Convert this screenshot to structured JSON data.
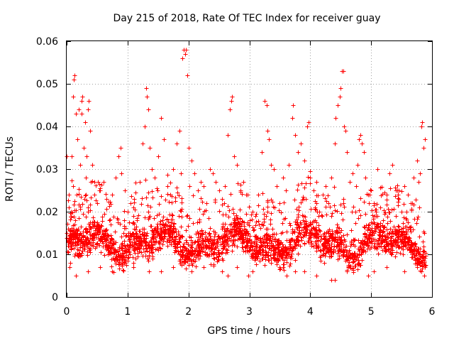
{
  "chart_data": {
    "type": "scatter",
    "title": "Day 215 of 2018, Rate Of TEC Index for receiver guay",
    "xlabel": "GPS time / hours",
    "ylabel": "ROTI / TECUs",
    "xlim": [
      0,
      6
    ],
    "ylim": [
      0,
      0.06
    ],
    "xticks": [
      0,
      1,
      2,
      3,
      4,
      5,
      6
    ],
    "xtick_labels": [
      "0",
      "1",
      "2",
      "3",
      "4",
      "5",
      "6"
    ],
    "yticks": [
      0,
      0.01,
      0.02,
      0.03,
      0.04,
      0.05,
      0.06
    ],
    "ytick_labels": [
      "0",
      "0.01",
      "0.02",
      "0.03",
      "0.04",
      "0.05",
      "0.06"
    ],
    "grid": true,
    "marker": "+",
    "color": "#ff0000",
    "x_range_of_points": [
      0,
      5.9
    ],
    "series": [
      {
        "name": "ROTI",
        "points": [
          [
            0.0,
            0.033
          ],
          [
            0.02,
            0.016
          ],
          [
            0.03,
            0.024
          ],
          [
            0.04,
            0.012
          ],
          [
            0.06,
            0.008
          ],
          [
            0.07,
            0.019
          ],
          [
            0.08,
            0.033
          ],
          [
            0.1,
            0.026
          ],
          [
            0.11,
            0.047
          ],
          [
            0.12,
            0.051
          ],
          [
            0.13,
            0.052
          ],
          [
            0.15,
            0.043
          ],
          [
            0.16,
            0.024
          ],
          [
            0.18,
            0.037
          ],
          [
            0.2,
            0.044
          ],
          [
            0.22,
            0.031
          ],
          [
            0.24,
            0.043
          ],
          [
            0.25,
            0.046
          ],
          [
            0.26,
            0.047
          ],
          [
            0.28,
            0.035
          ],
          [
            0.3,
            0.041
          ],
          [
            0.32,
            0.028
          ],
          [
            0.33,
            0.033
          ],
          [
            0.35,
            0.044
          ],
          [
            0.36,
            0.046
          ],
          [
            0.38,
            0.039
          ],
          [
            0.4,
            0.027
          ],
          [
            0.42,
            0.031
          ],
          [
            0.45,
            0.024
          ],
          [
            0.5,
            0.022
          ],
          [
            0.55,
            0.025
          ],
          [
            0.6,
            0.027
          ],
          [
            0.65,
            0.023
          ],
          [
            0.7,
            0.018
          ],
          [
            0.75,
            0.024
          ],
          [
            0.8,
            0.028
          ],
          [
            0.85,
            0.033
          ],
          [
            0.88,
            0.035
          ],
          [
            0.9,
            0.029
          ],
          [
            0.95,
            0.025
          ],
          [
            1.0,
            0.02
          ],
          [
            1.05,
            0.022
          ],
          [
            1.1,
            0.021
          ],
          [
            1.15,
            0.018
          ],
          [
            1.2,
            0.027
          ],
          [
            1.25,
            0.036
          ],
          [
            1.28,
            0.04
          ],
          [
            1.3,
            0.049
          ],
          [
            1.32,
            0.047
          ],
          [
            1.34,
            0.044
          ],
          [
            1.36,
            0.035
          ],
          [
            1.4,
            0.03
          ],
          [
            1.45,
            0.028
          ],
          [
            1.5,
            0.033
          ],
          [
            1.55,
            0.042
          ],
          [
            1.6,
            0.037
          ],
          [
            1.65,
            0.026
          ],
          [
            1.7,
            0.024
          ],
          [
            1.75,
            0.03
          ],
          [
            1.8,
            0.036
          ],
          [
            1.85,
            0.039
          ],
          [
            1.88,
            0.029
          ],
          [
            1.9,
            0.056
          ],
          [
            1.92,
            0.058
          ],
          [
            1.94,
            0.057
          ],
          [
            1.96,
            0.058
          ],
          [
            1.98,
            0.052
          ],
          [
            2.0,
            0.035
          ],
          [
            2.02,
            0.026
          ],
          [
            2.05,
            0.032
          ],
          [
            2.1,
            0.029
          ],
          [
            2.15,
            0.025
          ],
          [
            2.2,
            0.027
          ],
          [
            2.25,
            0.026
          ],
          [
            2.3,
            0.022
          ],
          [
            2.35,
            0.03
          ],
          [
            2.4,
            0.029
          ],
          [
            2.45,
            0.027
          ],
          [
            2.5,
            0.025
          ],
          [
            2.55,
            0.023
          ],
          [
            2.6,
            0.026
          ],
          [
            2.65,
            0.038
          ],
          [
            2.68,
            0.044
          ],
          [
            2.7,
            0.046
          ],
          [
            2.72,
            0.047
          ],
          [
            2.75,
            0.033
          ],
          [
            2.8,
            0.031
          ],
          [
            2.85,
            0.025
          ],
          [
            2.9,
            0.027
          ],
          [
            2.95,
            0.024
          ],
          [
            3.0,
            0.018
          ],
          [
            3.05,
            0.02
          ],
          [
            3.1,
            0.019
          ],
          [
            3.15,
            0.024
          ],
          [
            3.2,
            0.034
          ],
          [
            3.25,
            0.046
          ],
          [
            3.28,
            0.045
          ],
          [
            3.3,
            0.039
          ],
          [
            3.32,
            0.037
          ],
          [
            3.35,
            0.031
          ],
          [
            3.4,
            0.03
          ],
          [
            3.45,
            0.026
          ],
          [
            3.5,
            0.022
          ],
          [
            3.55,
            0.028
          ],
          [
            3.6,
            0.025
          ],
          [
            3.65,
            0.031
          ],
          [
            3.7,
            0.042
          ],
          [
            3.72,
            0.045
          ],
          [
            3.75,
            0.038
          ],
          [
            3.8,
            0.034
          ],
          [
            3.85,
            0.036
          ],
          [
            3.9,
            0.032
          ],
          [
            3.95,
            0.04
          ],
          [
            3.97,
            0.041
          ],
          [
            4.0,
            0.028
          ],
          [
            4.05,
            0.025
          ],
          [
            4.1,
            0.022
          ],
          [
            4.15,
            0.02
          ],
          [
            4.2,
            0.024
          ],
          [
            4.25,
            0.026
          ],
          [
            4.3,
            0.022
          ],
          [
            4.35,
            0.028
          ],
          [
            4.4,
            0.036
          ],
          [
            4.42,
            0.042
          ],
          [
            4.45,
            0.045
          ],
          [
            4.48,
            0.047
          ],
          [
            4.5,
            0.049
          ],
          [
            4.52,
            0.053
          ],
          [
            4.54,
            0.053
          ],
          [
            4.56,
            0.04
          ],
          [
            4.58,
            0.039
          ],
          [
            4.6,
            0.034
          ],
          [
            4.65,
            0.027
          ],
          [
            4.7,
            0.029
          ],
          [
            4.75,
            0.026
          ],
          [
            4.78,
            0.031
          ],
          [
            4.8,
            0.037
          ],
          [
            4.82,
            0.038
          ],
          [
            4.85,
            0.036
          ],
          [
            4.88,
            0.034
          ],
          [
            4.9,
            0.028
          ],
          [
            4.95,
            0.024
          ],
          [
            5.0,
            0.025
          ],
          [
            5.05,
            0.022
          ],
          [
            5.1,
            0.019
          ],
          [
            5.15,
            0.021
          ],
          [
            5.2,
            0.018
          ],
          [
            5.25,
            0.024
          ],
          [
            5.3,
            0.029
          ],
          [
            5.35,
            0.031
          ],
          [
            5.4,
            0.025
          ],
          [
            5.45,
            0.023
          ],
          [
            5.5,
            0.02
          ],
          [
            5.55,
            0.026
          ],
          [
            5.6,
            0.024
          ],
          [
            5.65,
            0.022
          ],
          [
            5.7,
            0.028
          ],
          [
            5.75,
            0.032
          ],
          [
            5.78,
            0.027
          ],
          [
            5.8,
            0.029
          ],
          [
            5.82,
            0.04
          ],
          [
            5.84,
            0.041
          ],
          [
            5.86,
            0.035
          ],
          [
            5.88,
            0.037
          ],
          [
            0.05,
            0.007
          ],
          [
            0.15,
            0.005
          ],
          [
            0.35,
            0.006
          ],
          [
            0.55,
            0.007
          ],
          [
            0.75,
            0.006
          ],
          [
            0.95,
            0.008
          ],
          [
            1.1,
            0.007
          ],
          [
            1.35,
            0.006
          ],
          [
            1.55,
            0.006
          ],
          [
            1.75,
            0.007
          ],
          [
            2.05,
            0.006
          ],
          [
            2.25,
            0.007
          ],
          [
            2.55,
            0.006
          ],
          [
            2.65,
            0.005
          ],
          [
            2.8,
            0.007
          ],
          [
            2.98,
            0.005
          ],
          [
            3.05,
            0.006
          ],
          [
            3.35,
            0.008
          ],
          [
            3.55,
            0.007
          ],
          [
            3.75,
            0.006
          ],
          [
            3.9,
            0.006
          ],
          [
            4.1,
            0.005
          ],
          [
            4.35,
            0.004
          ],
          [
            4.4,
            0.004
          ],
          [
            4.6,
            0.006
          ],
          [
            4.8,
            0.008
          ],
          [
            4.95,
            0.005
          ],
          [
            5.05,
            0.006
          ],
          [
            5.25,
            0.007
          ],
          [
            5.55,
            0.006
          ],
          [
            5.75,
            0.007
          ],
          [
            5.88,
            0.007
          ]
        ]
      }
    ]
  }
}
